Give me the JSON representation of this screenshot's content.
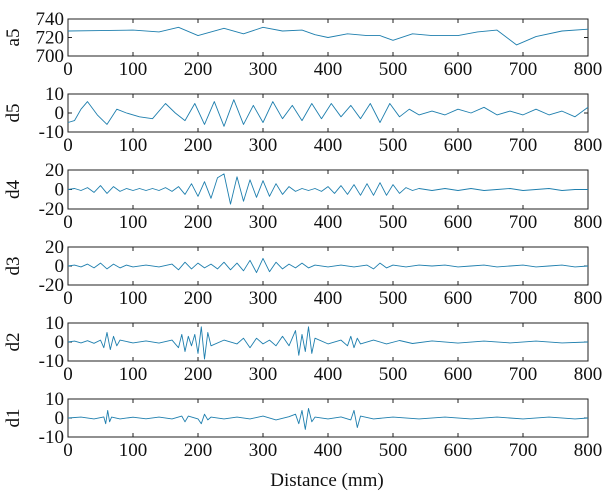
{
  "chart_data": {
    "type": "line",
    "xlabel": "Distance (mm)",
    "x_range": [
      0,
      800
    ],
    "x_ticks": [
      "0",
      "100",
      "200",
      "300",
      "400",
      "500",
      "600",
      "700",
      "800"
    ],
    "line_color": "#1f7fae",
    "panels": [
      {
        "name": "a5",
        "ylabel": "a5",
        "ylim": [
          700,
          740
        ],
        "y_ticks": [
          "740",
          "720",
          "700"
        ],
        "series": {
          "x": [
            0,
            50,
            100,
            140,
            170,
            200,
            240,
            270,
            300,
            330,
            360,
            380,
            400,
            430,
            460,
            480,
            500,
            530,
            560,
            600,
            630,
            660,
            690,
            720,
            760,
            800
          ],
          "y": [
            727,
            727.5,
            728,
            726,
            731,
            722,
            730,
            724,
            731,
            727,
            728,
            723,
            720,
            724,
            722,
            722,
            717,
            724,
            722,
            722,
            726,
            728,
            712,
            721,
            727,
            729
          ]
        }
      },
      {
        "name": "d5",
        "ylabel": "d5",
        "ylim": [
          -10,
          10
        ],
        "y_ticks": [
          "10",
          "0",
          "-10"
        ],
        "series": {
          "x": [
            0,
            10,
            20,
            30,
            45,
            60,
            75,
            90,
            110,
            130,
            150,
            165,
            180,
            195,
            210,
            225,
            240,
            255,
            270,
            285,
            300,
            315,
            330,
            345,
            360,
            375,
            390,
            405,
            420,
            435,
            450,
            465,
            480,
            495,
            510,
            525,
            540,
            560,
            580,
            600,
            620,
            640,
            660,
            680,
            700,
            720,
            740,
            760,
            780,
            800
          ],
          "y": [
            -5,
            -4,
            2,
            6,
            -1,
            -6,
            2,
            0,
            -2,
            -3,
            5,
            0,
            -4,
            5,
            -6,
            6,
            -7,
            7,
            -6,
            4,
            -5,
            6,
            -3,
            4,
            -4,
            5,
            -3,
            5,
            -2,
            4,
            -3,
            5,
            -5,
            5,
            -2,
            2,
            -1,
            1,
            -1,
            2,
            0,
            3,
            -1,
            1,
            -1,
            2,
            -1,
            1,
            -2,
            3
          ]
        }
      },
      {
        "name": "d4",
        "ylabel": "d4",
        "ylim": [
          -20,
          20
        ],
        "y_ticks": [
          "20",
          "0",
          "-20"
        ],
        "series": {
          "x": [
            0,
            10,
            20,
            30,
            40,
            50,
            60,
            70,
            80,
            90,
            100,
            110,
            120,
            130,
            140,
            150,
            160,
            170,
            180,
            190,
            200,
            210,
            220,
            230,
            240,
            250,
            260,
            270,
            280,
            290,
            300,
            310,
            320,
            330,
            340,
            350,
            360,
            370,
            380,
            390,
            400,
            410,
            420,
            430,
            440,
            450,
            460,
            470,
            480,
            490,
            500,
            510,
            520,
            530,
            540,
            560,
            580,
            600,
            620,
            640,
            660,
            680,
            700,
            720,
            740,
            760,
            780,
            800
          ],
          "y": [
            0,
            1,
            -1,
            2,
            -3,
            4,
            -4,
            3,
            -2,
            1,
            -1,
            1,
            -1,
            1,
            -1,
            2,
            -2,
            3,
            -5,
            6,
            -7,
            8,
            -9,
            12,
            16,
            -15,
            13,
            -12,
            10,
            -8,
            9,
            -7,
            6,
            -5,
            3,
            -2,
            1,
            -1,
            1,
            -2,
            3,
            -4,
            4,
            -5,
            5,
            -6,
            6,
            -6,
            7,
            -6,
            5,
            -4,
            2,
            -1,
            1,
            -1,
            1,
            -1,
            1,
            -1,
            0,
            1,
            -1,
            0,
            1,
            -1,
            0,
            0
          ]
        }
      },
      {
        "name": "d3",
        "ylabel": "d3",
        "ylim": [
          -20,
          20
        ],
        "y_ticks": [
          "20",
          "0",
          "-20"
        ],
        "series": {
          "x": [
            0,
            10,
            20,
            30,
            40,
            50,
            60,
            70,
            80,
            90,
            100,
            120,
            140,
            160,
            170,
            180,
            190,
            200,
            210,
            220,
            230,
            240,
            250,
            260,
            270,
            280,
            290,
            300,
            310,
            320,
            330,
            340,
            350,
            360,
            370,
            380,
            400,
            420,
            440,
            460,
            470,
            480,
            490,
            500,
            520,
            540,
            560,
            580,
            600,
            620,
            640,
            660,
            680,
            700,
            720,
            740,
            760,
            780,
            800
          ],
          "y": [
            0,
            1,
            -1,
            2,
            -2,
            3,
            -3,
            2,
            -2,
            1,
            -1,
            1,
            -1,
            2,
            -4,
            4,
            -3,
            3,
            -2,
            2,
            -3,
            4,
            -4,
            3,
            -5,
            6,
            -7,
            8,
            -6,
            4,
            -3,
            2,
            -2,
            3,
            -2,
            1,
            -1,
            1,
            -1,
            1,
            -3,
            3,
            -2,
            1,
            -1,
            1,
            0,
            1,
            -1,
            0,
            1,
            -1,
            0,
            1,
            -1,
            0,
            1,
            -1,
            0
          ]
        }
      },
      {
        "name": "d2",
        "ylabel": "d2",
        "ylim": [
          -10,
          10
        ],
        "y_ticks": [
          "10",
          "0",
          "-10"
        ],
        "series": {
          "x": [
            0,
            10,
            20,
            30,
            40,
            50,
            55,
            60,
            65,
            70,
            75,
            80,
            100,
            120,
            140,
            160,
            170,
            175,
            180,
            185,
            190,
            195,
            200,
            205,
            210,
            215,
            220,
            240,
            260,
            270,
            280,
            290,
            300,
            310,
            320,
            330,
            340,
            350,
            355,
            360,
            365,
            370,
            375,
            380,
            400,
            420,
            430,
            435,
            440,
            445,
            450,
            470,
            490,
            510,
            530,
            560,
            600,
            640,
            680,
            720,
            760,
            800
          ],
          "y": [
            0,
            0.5,
            -0.5,
            0.7,
            -0.7,
            1,
            -3,
            5,
            -4,
            3,
            -2,
            1,
            -0.5,
            0.6,
            -0.6,
            1,
            -3,
            4,
            -5,
            3,
            -2,
            4,
            -6,
            8,
            -9,
            5,
            -2,
            1,
            -1,
            2,
            -3,
            2,
            -1,
            1,
            -2,
            3,
            -2,
            6,
            -7,
            4,
            -5,
            8,
            -6,
            2,
            -1,
            1,
            -2,
            3,
            -3,
            2,
            -1,
            1,
            -1,
            0.8,
            -0.8,
            0.6,
            -0.6,
            0.5,
            -0.5,
            0.5,
            -0.5,
            0
          ]
        }
      },
      {
        "name": "d1",
        "ylabel": "d1",
        "ylim": [
          -10,
          10
        ],
        "y_ticks": [
          "10",
          "0",
          "-10"
        ],
        "series": {
          "x": [
            0,
            20,
            40,
            55,
            58,
            61,
            64,
            67,
            80,
            100,
            120,
            140,
            160,
            175,
            180,
            185,
            200,
            205,
            210,
            215,
            220,
            240,
            260,
            280,
            300,
            320,
            340,
            350,
            355,
            360,
            365,
            370,
            375,
            380,
            400,
            420,
            435,
            440,
            445,
            450,
            470,
            500,
            540,
            580,
            620,
            660,
            700,
            740,
            780,
            800
          ],
          "y": [
            0,
            0.5,
            -0.5,
            0.6,
            -3,
            4,
            -2,
            0.5,
            -0.5,
            0.4,
            -0.4,
            0.5,
            -0.5,
            1,
            -2,
            1,
            -0.5,
            -3,
            2,
            -1,
            0.5,
            -0.5,
            0.5,
            -0.5,
            1,
            -1,
            0.7,
            2,
            -3,
            4,
            -6,
            5,
            -2,
            0.5,
            -0.5,
            0.6,
            -1,
            4,
            -5,
            1,
            -0.5,
            0.5,
            -0.5,
            0.5,
            -0.5,
            0.5,
            -0.5,
            0.5,
            -0.5,
            0
          ]
        }
      }
    ]
  }
}
